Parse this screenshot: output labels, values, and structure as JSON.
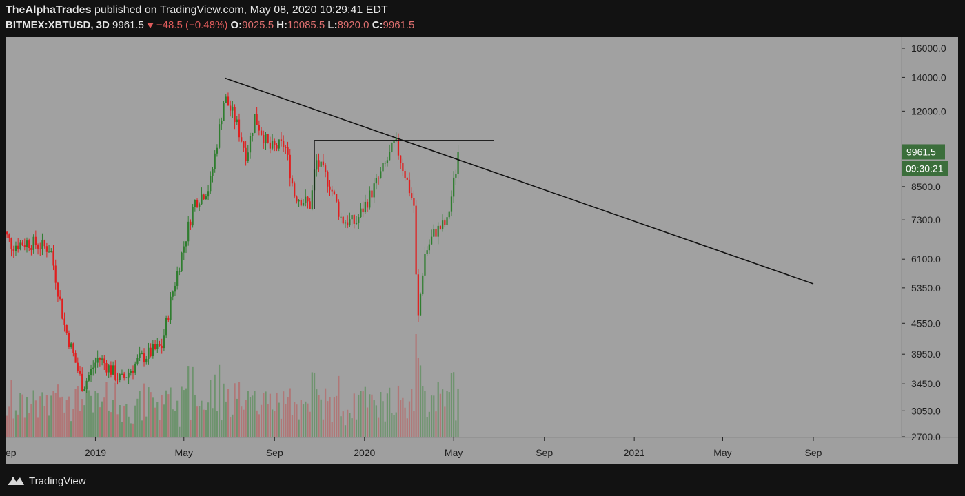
{
  "header": {
    "publisher": "TheAlphaTrades",
    "published_text": "published on TradingView.com, May 08, 2020 10:29:41 EDT",
    "symbol": "BITMEX:XBTUSD, 3D",
    "last": "9961.5",
    "change": "−48.5 (−0.48%)",
    "open_label": "O:",
    "open": "9025.5",
    "high_label": "H:",
    "high": "10085.5",
    "low_label": "L:",
    "low": "8920.0",
    "close_label": "C:",
    "close": "9961.5"
  },
  "colors": {
    "background": "#a1a1a1",
    "up": "#2f7d2f",
    "down": "#e01f1f",
    "line": "#111111",
    "axis_bg": "#9e9e9e",
    "price_badge": "#3b6e3b"
  },
  "chart_data": {
    "type": "candlestick",
    "scale": "log",
    "title": "BITMEX:XBTUSD, 3D",
    "ylim": [
      2700,
      16500
    ],
    "y_ticks": [
      "16000.0",
      "14000.0",
      "12000.0",
      "8500.0",
      "7300.0",
      "6100.0",
      "5350.0",
      "4550.0",
      "3950.0",
      "3450.0",
      "3050.0",
      "2700.0"
    ],
    "x_ticks": [
      "ep",
      "2019",
      "May",
      "Sep",
      "2020",
      "May",
      "Sep",
      "2021",
      "May",
      "Sep"
    ],
    "last_price_label": "9961.5",
    "countdown_label": "09:30:21",
    "price_path": [
      [
        "2018-08-25",
        7100
      ],
      [
        "2018-09-10",
        6500
      ],
      [
        "2018-10-01",
        6600
      ],
      [
        "2018-11-01",
        6400
      ],
      [
        "2018-11-20",
        4500
      ],
      [
        "2018-12-15",
        3400
      ],
      [
        "2019-01-05",
        3900
      ],
      [
        "2019-02-05",
        3500
      ],
      [
        "2019-03-01",
        3850
      ],
      [
        "2019-04-01",
        4100
      ],
      [
        "2019-04-15",
        5200
      ],
      [
        "2019-05-15",
        7900
      ],
      [
        "2019-06-05",
        8500
      ],
      [
        "2019-06-25",
        12800
      ],
      [
        "2019-07-10",
        11500
      ],
      [
        "2019-07-25",
        9800
      ],
      [
        "2019-08-05",
        11700
      ],
      [
        "2019-08-25",
        10100
      ],
      [
        "2019-09-15",
        10300
      ],
      [
        "2019-09-28",
        8200
      ],
      [
        "2019-10-20",
        7800
      ],
      [
        "2019-10-27",
        9600
      ],
      [
        "2019-11-15",
        8600
      ],
      [
        "2019-12-01",
        7300
      ],
      [
        "2019-12-20",
        7200
      ],
      [
        "2020-01-20",
        8800
      ],
      [
        "2020-02-12",
        10400
      ],
      [
        "2020-02-28",
        8700
      ],
      [
        "2020-03-08",
        7800
      ],
      [
        "2020-03-13",
        4500
      ],
      [
        "2020-03-22",
        6200
      ],
      [
        "2020-04-05",
        6900
      ],
      [
        "2020-04-22",
        7200
      ],
      [
        "2020-05-08",
        9961.5
      ]
    ],
    "annotations": [
      {
        "type": "trendline",
        "from": [
          "2019-06-26",
          13950
        ],
        "to": [
          "2021-09-01",
          5450
        ]
      },
      {
        "type": "horizontal",
        "from": [
          "2019-10-25",
          10500
        ],
        "to": [
          "2020-06-25",
          10500
        ]
      }
    ],
    "volume": "shown as bars along bottom"
  },
  "footer": {
    "brand": "TradingView",
    "logo_icon": "tradingview-logo-icon"
  }
}
